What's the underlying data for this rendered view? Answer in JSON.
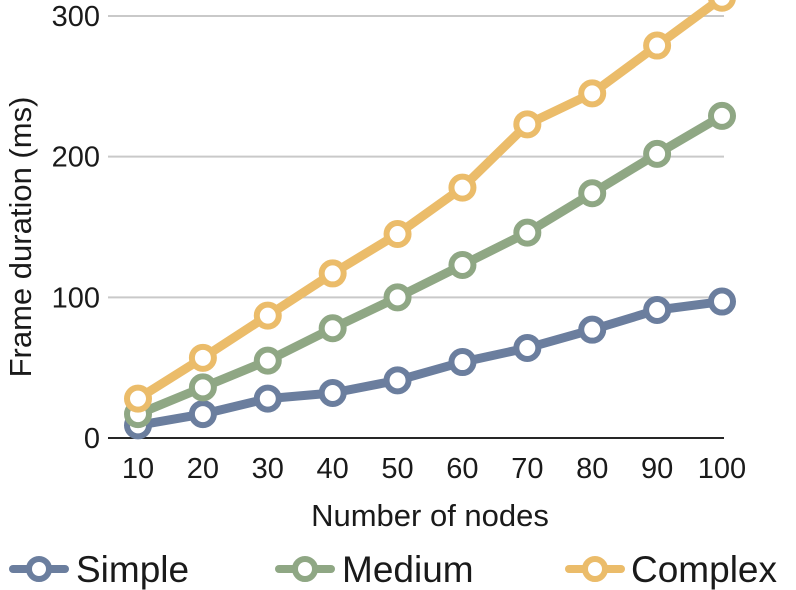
{
  "chart_data": {
    "type": "line",
    "title": "",
    "xlabel": "Number of nodes",
    "ylabel": "Frame duration (ms)",
    "x": [
      10,
      20,
      30,
      40,
      50,
      60,
      70,
      80,
      90,
      100
    ],
    "x_ticks": [
      "10",
      "20",
      "30",
      "40",
      "50",
      "60",
      "70",
      "80",
      "90",
      "100"
    ],
    "y_ticks": [
      "0",
      "100",
      "200",
      "300"
    ],
    "ylim": [
      0,
      300
    ],
    "grid": true,
    "legend_position": "bottom",
    "series": [
      {
        "name": "Simple",
        "color": "#6b7e9e",
        "values": [
          9,
          17,
          28,
          32,
          41,
          54,
          64,
          77,
          91,
          97
        ]
      },
      {
        "name": "Medium",
        "color": "#8fa784",
        "values": [
          17,
          36,
          55,
          78,
          100,
          123,
          146,
          174,
          202,
          229
        ]
      },
      {
        "name": "Complex",
        "color": "#ebbc6a",
        "values": [
          28,
          57,
          87,
          117,
          145,
          178,
          223,
          245,
          279,
          313
        ]
      }
    ]
  }
}
